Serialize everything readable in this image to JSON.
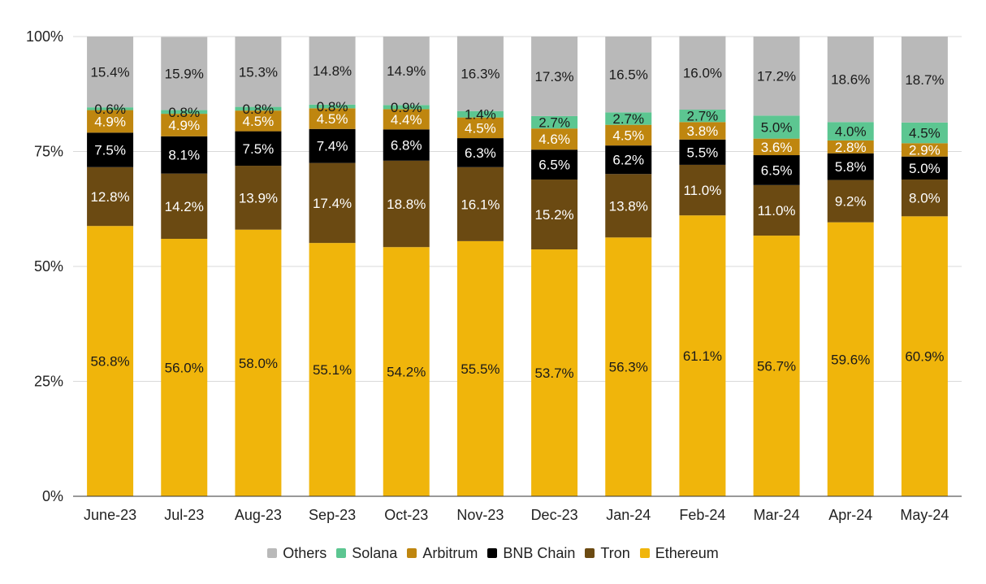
{
  "chart_data": {
    "type": "bar",
    "stacked": true,
    "percent": true,
    "title": "",
    "xlabel": "",
    "ylabel": "",
    "ylim": [
      0,
      100
    ],
    "grid": true,
    "yticks": [
      0,
      25,
      50,
      75,
      100
    ],
    "ytick_labels": [
      "0%",
      "25%",
      "50%",
      "75%",
      "100%"
    ],
    "categories": [
      "June-23",
      "Jul-23",
      "Aug-23",
      "Sep-23",
      "Oct-23",
      "Nov-23",
      "Dec-23",
      "Jan-24",
      "Feb-24",
      "Mar-24",
      "Apr-24",
      "May-24"
    ],
    "legend_position": "bottom",
    "legend": [
      "Others",
      "Solana",
      "Arbitrum",
      "BNB Chain",
      "Tron",
      "Ethereum"
    ],
    "series": [
      {
        "name": "Ethereum",
        "color": "#f0b50b",
        "label_color": "#1a1a1a",
        "values": [
          58.8,
          56.0,
          58.0,
          55.1,
          54.2,
          55.5,
          53.7,
          56.3,
          61.1,
          56.7,
          59.6,
          60.9
        ],
        "labels": [
          "58.8%",
          "56.0%",
          "58.0%",
          "55.1%",
          "54.2%",
          "55.5%",
          "53.7%",
          "56.3%",
          "61.1%",
          "56.7%",
          "59.6%",
          "60.9%"
        ]
      },
      {
        "name": "Tron",
        "color": "#6b4a12",
        "label_color": "#ffffff",
        "values": [
          12.8,
          14.2,
          13.9,
          17.4,
          18.8,
          16.1,
          15.2,
          13.8,
          11.0,
          11.0,
          9.2,
          8.0
        ],
        "labels": [
          "12.8%",
          "14.2%",
          "13.9%",
          "17.4%",
          "18.8%",
          "16.1%",
          "15.2%",
          "13.8%",
          "11.0%",
          "11.0%",
          "9.2%",
          "8.0%"
        ]
      },
      {
        "name": "BNB Chain",
        "color": "#000000",
        "label_color": "#ffffff",
        "values": [
          7.5,
          8.1,
          7.5,
          7.4,
          6.8,
          6.3,
          6.5,
          6.2,
          5.5,
          6.5,
          5.8,
          5.0
        ],
        "labels": [
          "7.5%",
          "8.1%",
          "7.5%",
          "7.4%",
          "6.8%",
          "6.3%",
          "6.5%",
          "6.2%",
          "5.5%",
          "6.5%",
          "5.8%",
          "5.0%"
        ]
      },
      {
        "name": "Arbitrum",
        "color": "#bf860f",
        "label_color": "#ffffff",
        "values": [
          4.9,
          4.9,
          4.5,
          4.5,
          4.4,
          4.5,
          4.6,
          4.5,
          3.8,
          3.6,
          2.8,
          2.9
        ],
        "labels": [
          "4.9%",
          "4.9%",
          "4.5%",
          "4.5%",
          "4.4%",
          "4.5%",
          "4.6%",
          "4.5%",
          "3.8%",
          "3.6%",
          "2.8%",
          "2.9%"
        ]
      },
      {
        "name": "Solana",
        "color": "#5cc691",
        "label_color": "#1a1a1a",
        "values": [
          0.6,
          0.8,
          0.8,
          0.8,
          0.9,
          1.4,
          2.7,
          2.7,
          2.7,
          5.0,
          4.0,
          4.5
        ],
        "labels": [
          "0.6%",
          "0.8%",
          "0.8%",
          "0.8%",
          "0.9%",
          "1.4%",
          "2.7%",
          "2.7%",
          "2.7%",
          "5.0%",
          "4.0%",
          "4.5%"
        ]
      },
      {
        "name": "Others",
        "color": "#b9b9b9",
        "label_color": "#1a1a1a",
        "values": [
          15.4,
          15.9,
          15.3,
          14.8,
          14.9,
          16.3,
          17.3,
          16.5,
          16.0,
          17.2,
          18.6,
          18.7
        ],
        "labels": [
          "15.4%",
          "15.9%",
          "15.3%",
          "14.8%",
          "14.9%",
          "16.3%",
          "17.3%",
          "16.5%",
          "16.0%",
          "17.2%",
          "18.6%",
          "18.7%"
        ]
      }
    ]
  }
}
